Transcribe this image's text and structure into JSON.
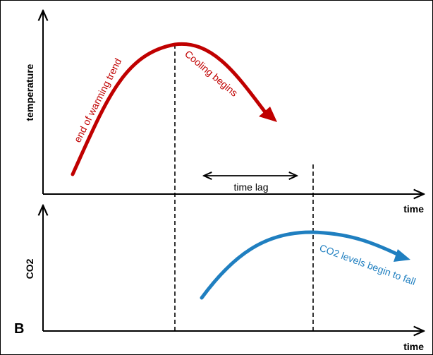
{
  "panel_label": "B",
  "top_panel": {
    "y_axis_label": "temperature",
    "x_axis_label": "time",
    "rising_label": "end of warming trend",
    "falling_label": "Cooling begins"
  },
  "lag": {
    "label": "time lag"
  },
  "bottom_panel": {
    "y_axis_label": "CO2",
    "x_axis_label": "time",
    "curve_label": "CO2 levels begin to fall"
  },
  "colors": {
    "temperature_curve": "#c00000",
    "co2_curve": "#1f7fc0",
    "axes": "#000000"
  }
}
